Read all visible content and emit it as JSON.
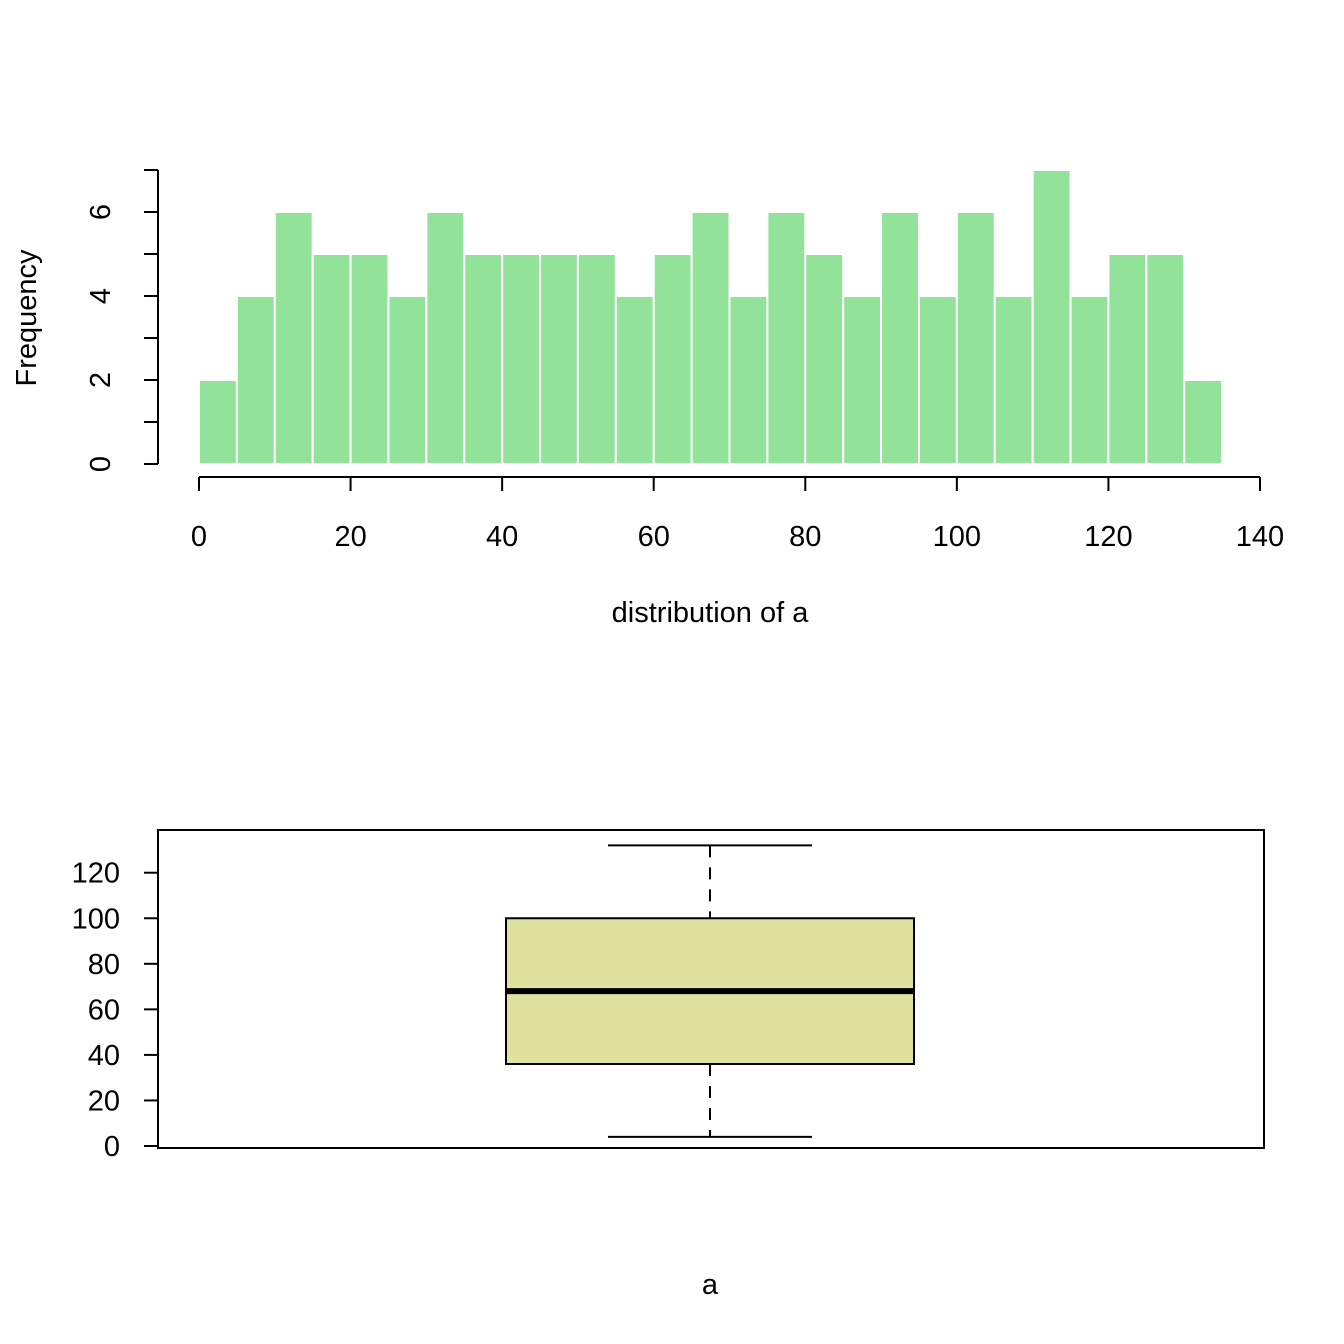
{
  "chart_data": [
    {
      "type": "bar",
      "subtype": "histogram",
      "title": "",
      "xlabel": "distribution of a",
      "ylabel": "Frequency",
      "bin_edges": [
        0,
        5,
        10,
        15,
        20,
        25,
        30,
        35,
        40,
        45,
        50,
        55,
        60,
        65,
        70,
        75,
        80,
        85,
        90,
        95,
        100,
        105,
        110,
        115,
        120,
        125,
        130,
        135
      ],
      "values": [
        2,
        4,
        6,
        5,
        5,
        4,
        6,
        5,
        5,
        5,
        5,
        4,
        5,
        6,
        4,
        6,
        5,
        4,
        6,
        4,
        6,
        4,
        7,
        4,
        5,
        5,
        2
      ],
      "xlim": [
        0,
        140
      ],
      "ylim": [
        0,
        7
      ],
      "x_ticks": [
        0,
        20,
        40,
        60,
        80,
        100,
        120,
        140
      ],
      "y_ticks": [
        0,
        2,
        4,
        6
      ],
      "y_minor_ticks": [
        1,
        3,
        5,
        7
      ],
      "bar_color": "#93e29a",
      "bar_border_color": "#ffffff",
      "grid": false
    },
    {
      "type": "boxplot",
      "title": "",
      "xlabel": "a",
      "ylabel": "",
      "box": {
        "lower_whisker": 4,
        "q1": 36,
        "median": 68,
        "q3": 100,
        "upper_whisker": 132
      },
      "ylim": [
        0,
        137
      ],
      "y_ticks": [
        0,
        20,
        40,
        60,
        80,
        100,
        120
      ],
      "box_color": "#e0e29f",
      "grid": false
    }
  ]
}
